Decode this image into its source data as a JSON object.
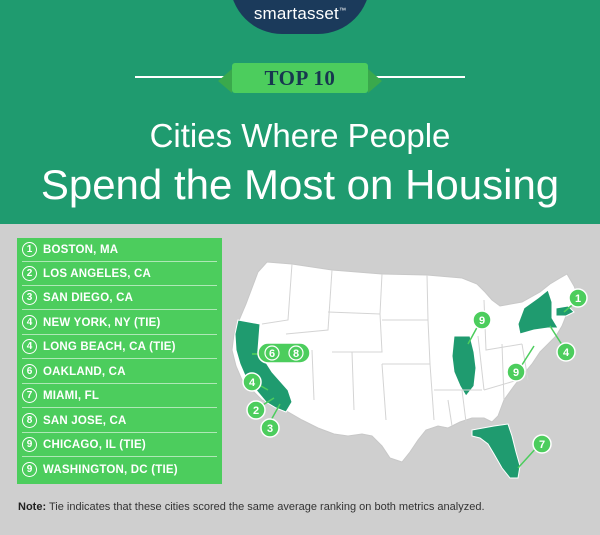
{
  "brand": {
    "name": "smartasset",
    "tm": "™"
  },
  "badge": {
    "label": "TOP 10"
  },
  "title": {
    "line1": "Cities Where People",
    "line2": "Spend the Most on Housing"
  },
  "list": [
    {
      "rank": "1",
      "label": "BOSTON, MA"
    },
    {
      "rank": "2",
      "label": "LOS ANGELES, CA"
    },
    {
      "rank": "3",
      "label": "SAN DIEGO, CA"
    },
    {
      "rank": "4",
      "label": "NEW YORK, NY (TIE)"
    },
    {
      "rank": "4",
      "label": "LONG BEACH, CA (TIE)"
    },
    {
      "rank": "6",
      "label": "OAKLAND, CA"
    },
    {
      "rank": "7",
      "label": "MIAMI, FL"
    },
    {
      "rank": "8",
      "label": "SAN JOSE, CA"
    },
    {
      "rank": "9",
      "label": "CHICAGO, IL (TIE)"
    },
    {
      "rank": "9",
      "label": "WASHINGTON, DC (TIE)"
    }
  ],
  "map_markers": {
    "ma": "1",
    "ny": "4",
    "dc": "9",
    "il": "9",
    "fl": "7",
    "oak": "6",
    "sj": "8",
    "lb": "4",
    "la": "2",
    "sd": "3"
  },
  "note": {
    "prefix": "Note:",
    "text": " Tie indicates that these cities scored the same average ranking on both metrics analyzed."
  },
  "colors": {
    "header": "#1f9b6f",
    "accent": "#4ccd5d",
    "background": "#cfcfcf",
    "navy": "#1b3a5b",
    "highlight_state": "#1f9b6f"
  }
}
